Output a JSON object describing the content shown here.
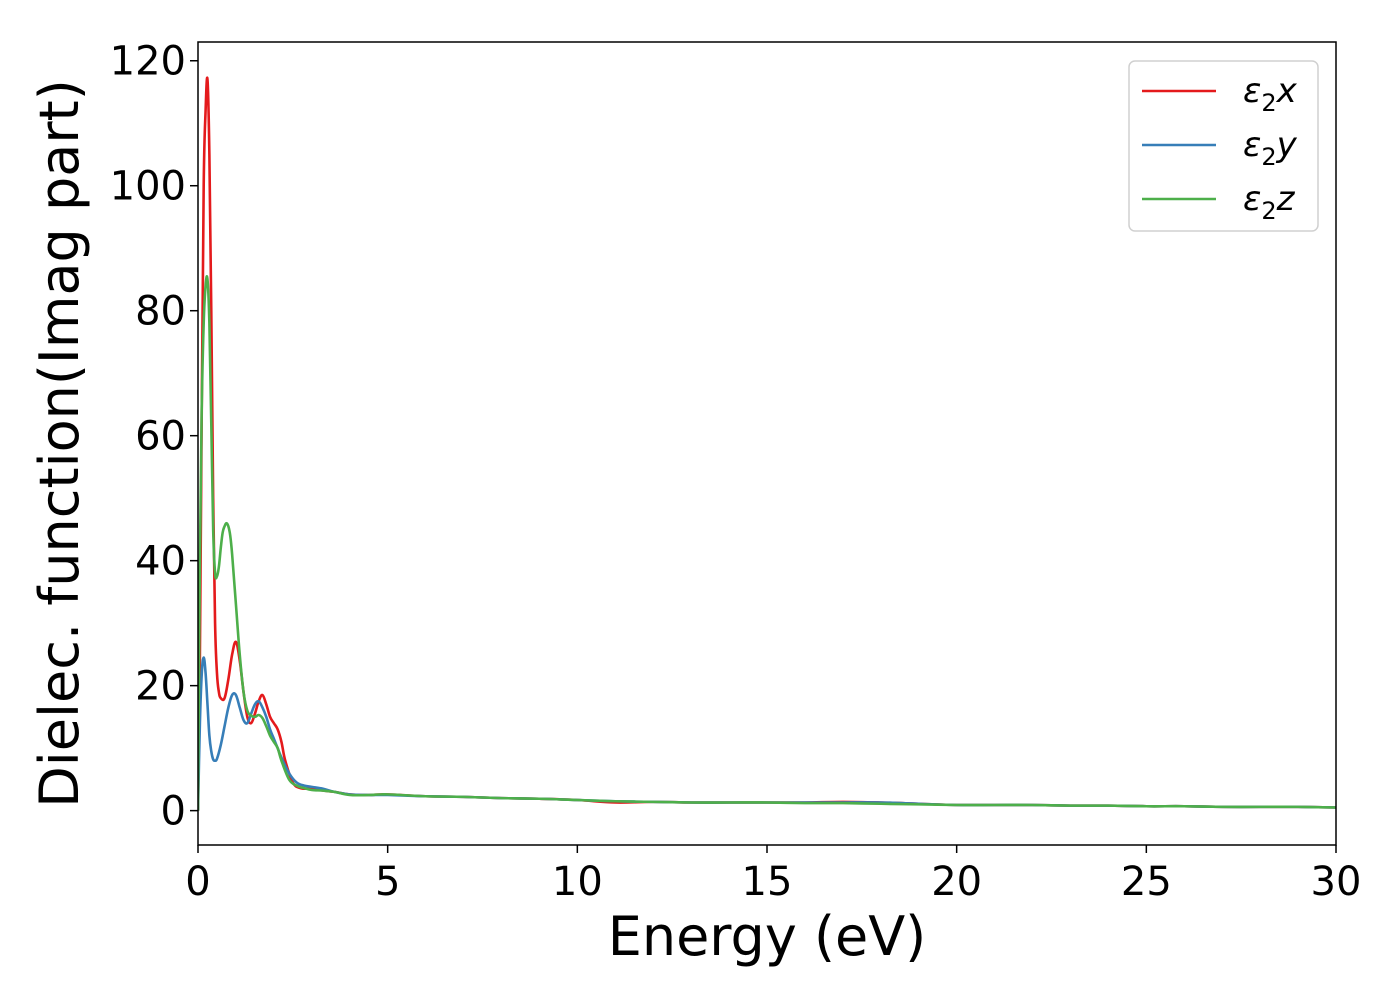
{
  "chart_data": {
    "type": "line",
    "xlabel": "Energy (eV)",
    "ylabel": "Dielec. function(Imag part)",
    "xlim": [
      0,
      30
    ],
    "ylim": [
      -5.5,
      123
    ],
    "xticks": [
      0,
      5,
      10,
      15,
      20,
      25,
      30
    ],
    "yticks": [
      0,
      20,
      40,
      60,
      80,
      100,
      120
    ],
    "grid": false,
    "legend_position": "top-right",
    "series": [
      {
        "name": "ε₂x",
        "legend_base": "ε",
        "legend_sub": "2",
        "legend_suffix": "x",
        "color": "#e41a1c",
        "x": [
          0,
          0.05,
          0.1,
          0.15,
          0.2,
          0.25,
          0.3,
          0.35,
          0.4,
          0.45,
          0.5,
          0.55,
          0.6,
          0.7,
          0.8,
          0.9,
          1.0,
          1.1,
          1.2,
          1.3,
          1.4,
          1.5,
          1.6,
          1.7,
          1.8,
          1.9,
          2.0,
          2.1,
          2.2,
          2.3,
          2.5,
          2.7,
          3.0,
          3.3,
          3.6,
          4.0,
          4.5,
          5,
          6,
          7,
          8,
          9,
          10,
          11,
          12,
          13,
          14,
          15,
          16,
          17,
          18,
          19,
          20,
          21,
          22,
          23,
          24,
          25,
          26,
          27,
          28,
          29,
          30
        ],
        "y": [
          0,
          25,
          65,
          100,
          112,
          117,
          105,
          80,
          50,
          30,
          22,
          19,
          18,
          18,
          21,
          25,
          27,
          24,
          19,
          15,
          14,
          15.5,
          17.5,
          18.5,
          17,
          15,
          14,
          13,
          11,
          8,
          4.5,
          3.6,
          3.5,
          3.2,
          3.0,
          2.6,
          2.5,
          2.6,
          2.3,
          2.2,
          2.0,
          1.9,
          1.7,
          1.3,
          1.4,
          1.3,
          1.3,
          1.3,
          1.3,
          1.4,
          1.3,
          1.1,
          0.9,
          0.9,
          0.9,
          0.8,
          0.8,
          0.7,
          0.7,
          0.6,
          0.6,
          0.6,
          0.5
        ]
      },
      {
        "name": "ε₂y",
        "legend_base": "ε",
        "legend_sub": "2",
        "legend_suffix": "y",
        "color": "#377eb8",
        "x": [
          0,
          0.05,
          0.1,
          0.15,
          0.2,
          0.25,
          0.3,
          0.35,
          0.4,
          0.45,
          0.5,
          0.6,
          0.7,
          0.8,
          0.9,
          1.0,
          1.1,
          1.2,
          1.3,
          1.4,
          1.5,
          1.6,
          1.7,
          1.8,
          1.9,
          2.0,
          2.1,
          2.2,
          2.4,
          2.6,
          2.8,
          3.0,
          3.3,
          3.6,
          4.0,
          4.5,
          5,
          6,
          7,
          8,
          9,
          10,
          11,
          12,
          13,
          14,
          15,
          16,
          17,
          18,
          19,
          20,
          21,
          22,
          23,
          24,
          25,
          26,
          27,
          28,
          29,
          30
        ],
        "y": [
          0,
          14,
          22,
          24.5,
          22,
          17,
          12,
          9.5,
          8.2,
          8,
          8.3,
          10.5,
          13.5,
          16.5,
          18.5,
          18.5,
          16.5,
          14.5,
          14,
          15.5,
          17,
          17.5,
          16.5,
          15,
          13,
          11.5,
          10,
          8.5,
          6,
          4.5,
          4,
          3.8,
          3.5,
          3.0,
          2.6,
          2.5,
          2.5,
          2.3,
          2.2,
          2.0,
          1.9,
          1.7,
          1.5,
          1.4,
          1.3,
          1.3,
          1.3,
          1.3,
          1.3,
          1.3,
          1.1,
          0.9,
          0.9,
          0.9,
          0.8,
          0.8,
          0.7,
          0.7,
          0.6,
          0.6,
          0.6,
          0.5
        ]
      },
      {
        "name": "ε₂z",
        "legend_base": "ε",
        "legend_sub": "2",
        "legend_suffix": "z",
        "color": "#4daf4a",
        "x": [
          0,
          0.05,
          0.1,
          0.15,
          0.2,
          0.25,
          0.3,
          0.35,
          0.4,
          0.45,
          0.5,
          0.55,
          0.6,
          0.65,
          0.7,
          0.75,
          0.8,
          0.85,
          0.9,
          1.0,
          1.1,
          1.2,
          1.3,
          1.4,
          1.5,
          1.6,
          1.7,
          1.8,
          1.9,
          2.0,
          2.1,
          2.2,
          2.4,
          2.6,
          2.8,
          3.0,
          3.3,
          3.6,
          4.0,
          4.5,
          5,
          6,
          7,
          8,
          9,
          10,
          11,
          12,
          13,
          14,
          15,
          16,
          17,
          18,
          19,
          20,
          21,
          22,
          23,
          24,
          25,
          26,
          27,
          28,
          29,
          30
        ],
        "y": [
          0,
          40,
          65,
          78,
          84,
          85,
          78,
          62,
          45,
          38,
          37.5,
          39,
          42,
          44.5,
          45.5,
          46,
          45.5,
          44,
          41,
          33,
          25,
          19,
          16,
          15.2,
          15,
          15.3,
          14.8,
          13.5,
          12,
          11,
          10,
          8,
          5,
          4,
          3.6,
          3.3,
          3.2,
          3.0,
          2.5,
          2.5,
          2.6,
          2.3,
          2.2,
          2.0,
          1.9,
          1.7,
          1.5,
          1.4,
          1.3,
          1.3,
          1.3,
          1.2,
          1.2,
          1.1,
          1.0,
          0.9,
          0.9,
          0.9,
          0.8,
          0.8,
          0.7,
          0.7,
          0.6,
          0.6,
          0.6,
          0.5
        ]
      }
    ]
  }
}
